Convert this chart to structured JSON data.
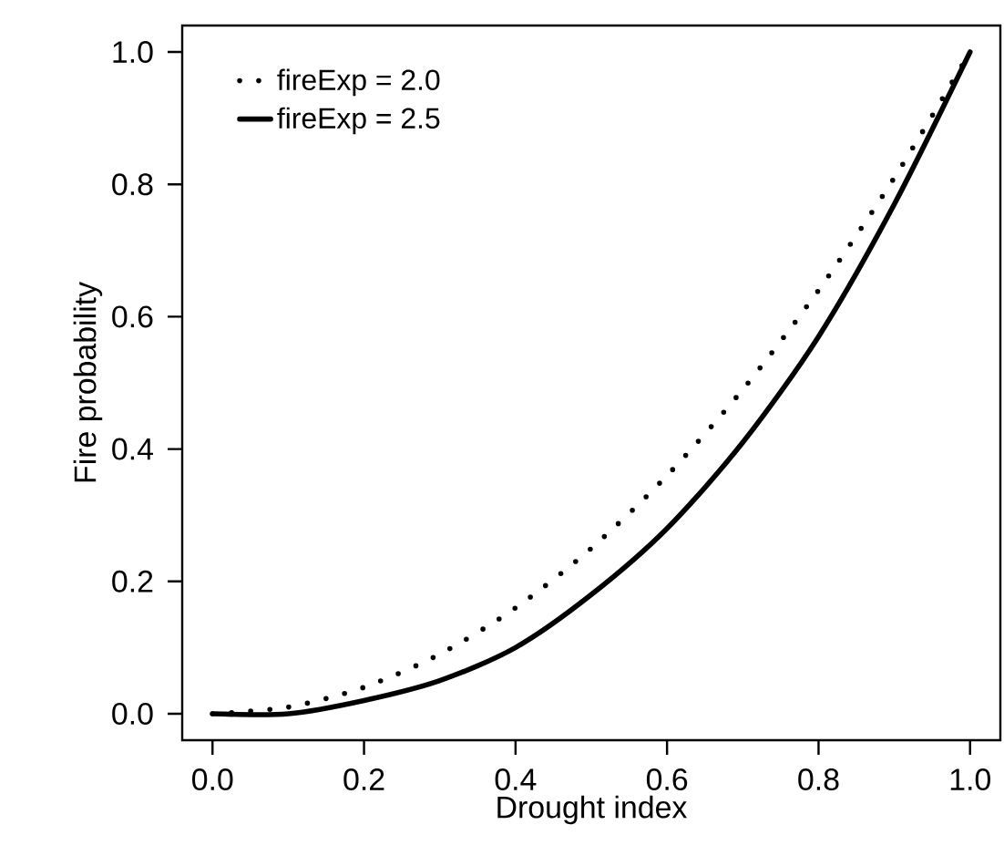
{
  "chart_data": {
    "type": "line",
    "xlabel": "Drought index",
    "ylabel": "Fire probability",
    "x": [
      0,
      0.1,
      0.2,
      0.3,
      0.4,
      0.5,
      0.6,
      0.7,
      0.8,
      0.9,
      1.0
    ],
    "series": [
      {
        "name": "fireExp = 2.0",
        "color": "#000000",
        "line_style": "dotted",
        "values": [
          0,
          0.01,
          0.04,
          0.09,
          0.16,
          0.25,
          0.36,
          0.49,
          0.64,
          0.81,
          1.0
        ]
      },
      {
        "name": "fireExp = 2.5",
        "color": "#000000",
        "line_style": "solid",
        "values": [
          0,
          0.0,
          0.02,
          0.05,
          0.1,
          0.18,
          0.28,
          0.41,
          0.57,
          0.77,
          1.0
        ]
      }
    ],
    "xlim": [
      -0.04,
      1.04
    ],
    "ylim": [
      -0.04,
      1.04
    ],
    "xticks": [
      {
        "value": 0,
        "label": "0.0"
      },
      0.2,
      0.4,
      0.6,
      0.8,
      {
        "value": 1,
        "label": "1.0"
      }
    ],
    "yticks": [
      {
        "value": 0,
        "label": "0.0"
      },
      0.2,
      0.4,
      0.6,
      0.8,
      {
        "value": 1,
        "label": "1.0"
      }
    ],
    "legend": "top left",
    "grid": false,
    "marker": "none"
  }
}
